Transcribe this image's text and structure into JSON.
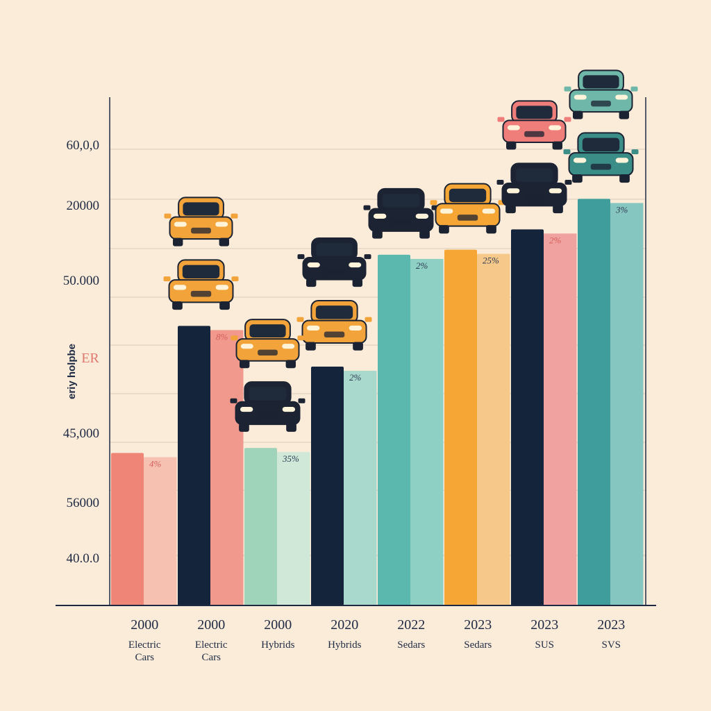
{
  "chart_data": {
    "type": "bar",
    "title": "",
    "ylabel": "eriy holpbe",
    "side_label": "ER",
    "y_tick_labels": [
      "60,0,0",
      "20000",
      "50.000",
      "45,000",
      "56000",
      "40.0.0"
    ],
    "grid": true,
    "categories": [
      {
        "year": "2000",
        "name": "Electric Cars"
      },
      {
        "year": "2000",
        "name": "Electric Cars"
      },
      {
        "year": "2000",
        "name": "Hybrids"
      },
      {
        "year": "2020",
        "name": "Hybrids"
      },
      {
        "year": "2022",
        "name": "Sedars"
      },
      {
        "year": "2023",
        "name": "Sedars"
      },
      {
        "year": "2023",
        "name": "SUS"
      },
      {
        "year": "2023",
        "name": "SVS"
      }
    ],
    "bars": [
      {
        "value": 30,
        "color": "#ef8577",
        "shade": "#f7c1b2",
        "label": "4%",
        "car_color": ""
      },
      {
        "value": 55,
        "color": "#14243a",
        "shade": "#f1998d",
        "label": "8%",
        "car_color": "#f2a33a"
      },
      {
        "value": 31,
        "color": "#9fd4ba",
        "shade": "#cfe8d8",
        "label": "35%",
        "car_color": "#1c2434"
      },
      {
        "value": 47,
        "color": "#14243a",
        "shade": "#a9d8cc",
        "label": "2%",
        "car_color": "#f2a33a"
      },
      {
        "value": 69,
        "color": "#5ab8ae",
        "shade": "#8fd0c4",
        "label": "2%",
        "car_color": "#1c2434"
      },
      {
        "value": 70,
        "color": "#f5a634",
        "shade": "#f6c98a",
        "label": "25%",
        "car_color": "#f5a634"
      },
      {
        "value": 74,
        "color": "#14243a",
        "shade": "#f0a2a0",
        "label": "2%",
        "car_color": "#1c2434"
      },
      {
        "value": 80,
        "color": "#3f9e9c",
        "shade": "#86c6c0",
        "label": "3%",
        "car_color": "#3b8d88"
      }
    ],
    "extra_cars": [
      {
        "bar_index": 1,
        "color": "#f2a33a"
      },
      {
        "bar_index": 2,
        "color": "#f2a33a"
      },
      {
        "bar_index": 3,
        "color": "#1c2434"
      },
      {
        "bar_index": 6,
        "color": "#ef7d7a"
      },
      {
        "bar_index": 7,
        "color": "#6fb7a8"
      }
    ],
    "colors": {
      "background": "#fbecd9",
      "axis": "#1e2a44",
      "grid": "#d9cbbb",
      "text": "#1e2a44"
    }
  }
}
